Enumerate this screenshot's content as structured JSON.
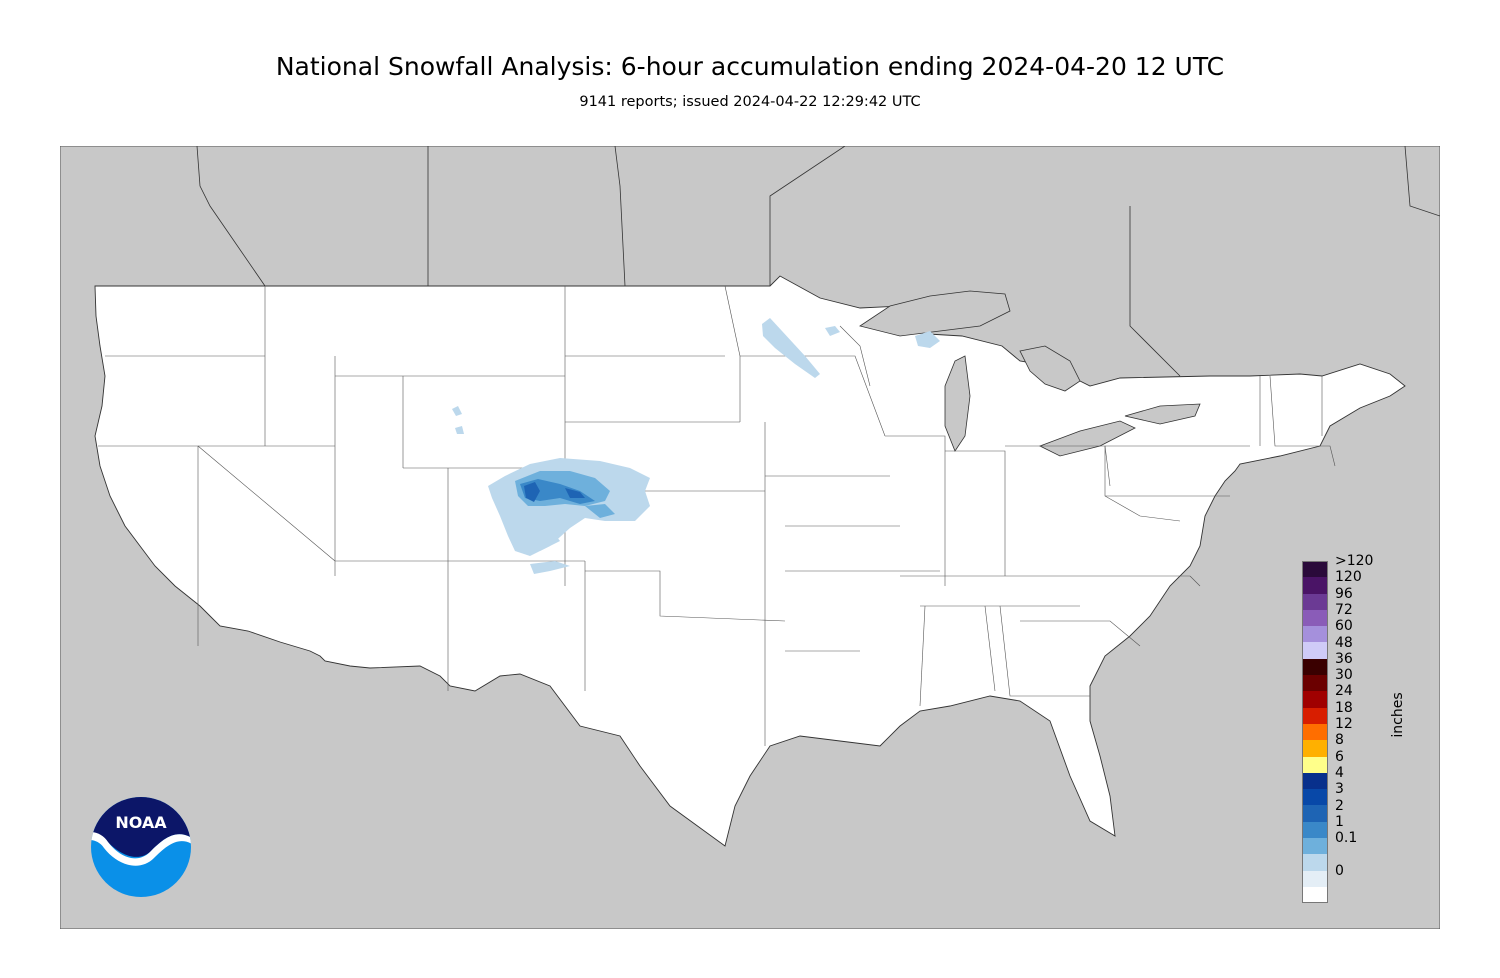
{
  "header": {
    "title": "National Snowfall Analysis: 6-hour accumulation ending 2024-04-20 12 UTC",
    "subtitle": "9141 reports; issued 2024-04-22 12:29:42 UTC"
  },
  "map": {
    "region": "Contiguous United States",
    "colors": {
      "background": "#c8c8c8",
      "land": "#ffffff",
      "border": "#444444"
    },
    "snow_features": [
      {
        "area": "Colorado / Nebraska / Kansas",
        "max_category": "3"
      },
      {
        "area": "Minnesota",
        "max_category": "0.1"
      },
      {
        "area": "Michigan Upper Peninsula",
        "max_category": "0.1"
      },
      {
        "area": "Wyoming",
        "max_category": "0.1"
      },
      {
        "area": "New Mexico",
        "max_category": "0.1"
      }
    ]
  },
  "legend": {
    "units": "inches",
    "levels": [
      {
        "label": ">120",
        "color": "#2a0a3a"
      },
      {
        "label": "120",
        "color": "#4a1466"
      },
      {
        "label": "96",
        "color": "#6b3a94"
      },
      {
        "label": "72",
        "color": "#8a5cb8"
      },
      {
        "label": "60",
        "color": "#a590dc"
      },
      {
        "label": "48",
        "color": "#cfcbf7"
      },
      {
        "label": "36",
        "color": "#3a0000"
      },
      {
        "label": "30",
        "color": "#6b0000"
      },
      {
        "label": "24",
        "color": "#a00000"
      },
      {
        "label": "18",
        "color": "#d81e00"
      },
      {
        "label": "12",
        "color": "#ff6e00"
      },
      {
        "label": "8",
        "color": "#ffb000"
      },
      {
        "label": "6",
        "color": "#ffff8a"
      },
      {
        "label": "4",
        "color": "#08308c"
      },
      {
        "label": "3",
        "color": "#0848a8"
      },
      {
        "label": "2",
        "color": "#1e64b4"
      },
      {
        "label": "1",
        "color": "#3a88c8"
      },
      {
        "label": "0.1",
        "color": "#6eb0dc"
      },
      {
        "label": "",
        "color": "#bcd8ec"
      },
      {
        "label": "0",
        "color": "#e4eef6"
      },
      {
        "label": "",
        "color": "#ffffff"
      }
    ]
  },
  "logo": {
    "text": "NOAA",
    "colors": {
      "top": "#0c1668",
      "bottom": "#0a90e8",
      "wing": "#ffffff"
    }
  }
}
